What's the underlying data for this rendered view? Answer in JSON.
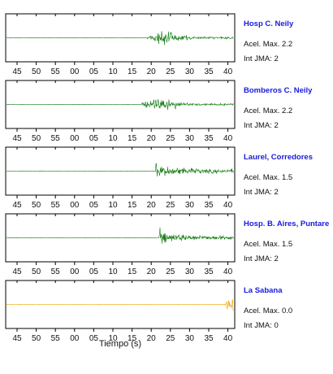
{
  "chart_data": {
    "type": "line",
    "xlabel": "Tiempo (s)",
    "tick_labels": [
      "45",
      "50",
      "55",
      "00",
      "05",
      "10",
      "15",
      "20",
      "25",
      "30",
      "35",
      "40"
    ],
    "panels": [
      {
        "name": "Hosp C. Neily",
        "accel_label": "Acel. Max. 2.2",
        "int_label": "Int JMA: 2",
        "accel_max": 2.2,
        "int_jma": 2,
        "color": "#117a11",
        "onset_s": 18.5
      },
      {
        "name": "Bomberos C. Neily",
        "accel_label": "Acel. Max. 2.2",
        "int_label": "Int JMA: 2",
        "accel_max": 2.2,
        "int_jma": 2,
        "color": "#117a11",
        "onset_s": 17.5
      },
      {
        "name": "Laurel, Corredores",
        "accel_label": "Acel. Max. 1.5",
        "int_label": "Int JMA: 2",
        "accel_max": 1.5,
        "int_jma": 2,
        "color": "#117a11",
        "onset_s": 21.2
      },
      {
        "name": "Hosp. B. Aires, Puntare",
        "accel_label": "Acel. Max. 1.5",
        "int_label": "Int JMA: 2",
        "accel_max": 1.5,
        "int_jma": 2,
        "color": "#117a11",
        "onset_s": 22.0
      },
      {
        "name": "La Sabana",
        "accel_label": "Acel. Max. 0.0",
        "int_label": "Int JMA: 0",
        "accel_max": 0.0,
        "int_jma": 0,
        "color": "#f0a500",
        "onset_s": 39.0
      }
    ]
  }
}
